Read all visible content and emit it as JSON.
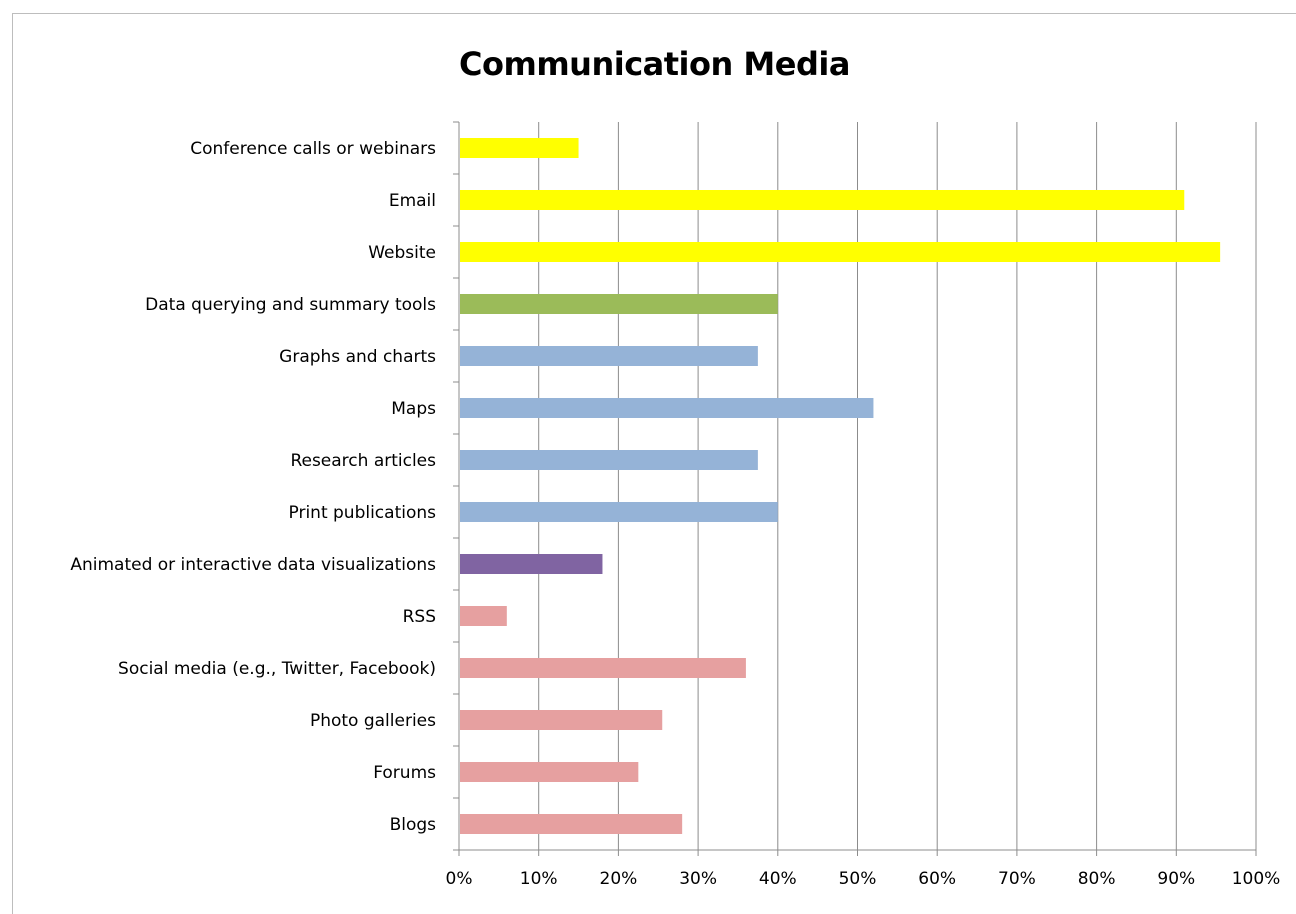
{
  "chart_data": {
    "type": "bar",
    "orientation": "horizontal",
    "title": "Communication Media",
    "xlabel": "",
    "ylabel": "",
    "xlim": [
      0,
      100
    ],
    "grid": true,
    "legend": "none",
    "tick_labels": [
      "0%",
      "10%",
      "20%",
      "30%",
      "40%",
      "50%",
      "60%",
      "70%",
      "80%",
      "90%",
      "100%"
    ],
    "categories": [
      "Conference calls or webinars",
      "Email",
      "Website",
      "Data querying and summary tools",
      "Graphs and charts",
      "Maps",
      "Research articles",
      "Print publications",
      "Animated or interactive data visualizations",
      "RSS",
      "Social media (e.g., Twitter, Facebook)",
      "Photo galleries",
      "Forums",
      "Blogs"
    ],
    "values": [
      15,
      91,
      95.5,
      40,
      37.5,
      52,
      37.5,
      40,
      18,
      6,
      36,
      25.5,
      22.5,
      28
    ],
    "colors": [
      "#ffff00",
      "#ffff00",
      "#ffff00",
      "#9bbb59",
      "#95b3d7",
      "#95b3d7",
      "#95b3d7",
      "#95b3d7",
      "#8064a2",
      "#e6a0a0",
      "#e6a0a0",
      "#e6a0a0",
      "#e6a0a0",
      "#e6a0a0"
    ]
  }
}
